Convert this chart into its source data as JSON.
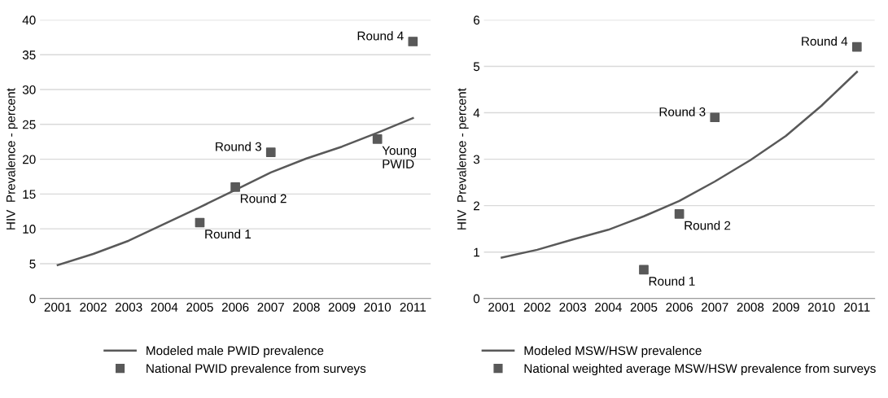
{
  "chart_data": [
    {
      "type": "line",
      "ylabel": "HIV  Prevalence - percent",
      "categories": [
        "2001",
        "2002",
        "2003",
        "2004",
        "2005",
        "2006",
        "2007",
        "2008",
        "2009",
        "2010",
        "2011"
      ],
      "ylim": [
        0,
        40
      ],
      "yticks": [
        0,
        5,
        10,
        15,
        20,
        25,
        30,
        35,
        40
      ],
      "grid": "y",
      "legend": "bottom",
      "series": [
        {
          "name": "Modeled male PWID prevalence",
          "color": "#595959",
          "marker": "none",
          "values": [
            4.8,
            6.4,
            8.3,
            10.7,
            13.1,
            15.6,
            18.1,
            20.1,
            21.8,
            23.8,
            25.9
          ]
        },
        {
          "name": "National PWID prevalence from surveys",
          "type": "scatter",
          "color": "#595959",
          "marker": "square",
          "values": [
            null,
            null,
            null,
            null,
            10.9,
            16,
            21,
            null,
            null,
            22.9,
            36.9
          ]
        }
      ],
      "annotations": [
        {
          "text": "Round 1",
          "x": "2005",
          "y": 10.9
        },
        {
          "text": "Round 2",
          "x": "2006",
          "y": 16
        },
        {
          "text": "Round 3",
          "x": "2007",
          "y": 21
        },
        {
          "text": "Young\nPWID",
          "x": "2010",
          "y": 22.9
        },
        {
          "text": "Round 4",
          "x": "2011",
          "y": 36.9
        }
      ]
    },
    {
      "type": "line",
      "ylabel": "HIV  Prevalence - percent",
      "categories": [
        "2001",
        "2002",
        "2003",
        "2004",
        "2005",
        "2006",
        "2007",
        "2008",
        "2009",
        "2010",
        "2011"
      ],
      "ylim": [
        0,
        6
      ],
      "yticks": [
        0,
        1,
        2,
        3,
        4,
        5,
        6
      ],
      "grid": "y",
      "legend": "bottom",
      "series": [
        {
          "name": "Modeled MSW/HSW prevalence",
          "color": "#595959",
          "marker": "none",
          "values": [
            0.88,
            1.05,
            1.27,
            1.48,
            1.77,
            2.1,
            2.52,
            2.98,
            3.5,
            4.15,
            4.88
          ]
        },
        {
          "name": "National weighted average MSW/HSW prevalence from surveys",
          "type": "scatter",
          "color": "#595959",
          "marker": "square",
          "values": [
            null,
            null,
            null,
            null,
            0.62,
            1.82,
            3.9,
            null,
            null,
            null,
            5.42
          ]
        }
      ],
      "annotations": [
        {
          "text": "Round 1",
          "x": "2005",
          "y": 0.62
        },
        {
          "text": "Round 2",
          "x": "2006",
          "y": 1.82
        },
        {
          "text": "Round 3",
          "x": "2007",
          "y": 3.9
        },
        {
          "text": "Round 4",
          "x": "2011",
          "y": 5.42
        }
      ]
    }
  ]
}
